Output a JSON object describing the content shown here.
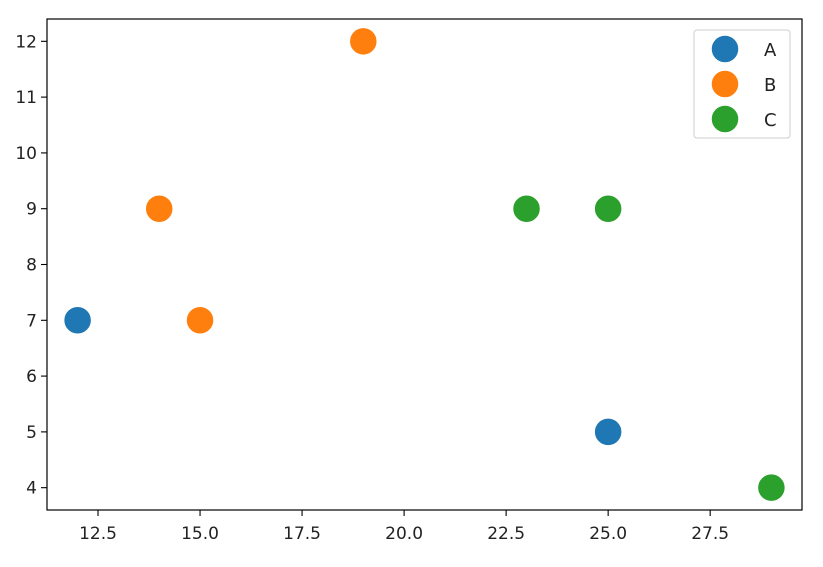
{
  "chart_data": {
    "type": "scatter",
    "title": "",
    "xlabel": "",
    "ylabel": "",
    "xlim": [
      11.25,
      29.75
    ],
    "ylim": [
      3.6,
      12.4
    ],
    "xticks": [
      12.5,
      15.0,
      17.5,
      20.0,
      22.5,
      25.0,
      27.5
    ],
    "xtick_labels": [
      "12.5",
      "15.0",
      "17.5",
      "20.0",
      "22.5",
      "25.0",
      "27.5"
    ],
    "yticks": [
      4,
      5,
      6,
      7,
      8,
      9,
      10,
      11,
      12
    ],
    "ytick_labels": [
      "4",
      "5",
      "6",
      "7",
      "8",
      "9",
      "10",
      "11",
      "12"
    ],
    "grid": false,
    "legend_position": "top-right",
    "series": [
      {
        "name": "A",
        "color": "#1f77b4",
        "points": [
          {
            "x": 12,
            "y": 7
          },
          {
            "x": 25,
            "y": 5
          }
        ]
      },
      {
        "name": "B",
        "color": "#ff7f0e",
        "points": [
          {
            "x": 19,
            "y": 12
          },
          {
            "x": 14,
            "y": 9
          },
          {
            "x": 15,
            "y": 7
          }
        ]
      },
      {
        "name": "C",
        "color": "#2ca02c",
        "points": [
          {
            "x": 23,
            "y": 9
          },
          {
            "x": 25,
            "y": 9
          },
          {
            "x": 29,
            "y": 4
          }
        ]
      }
    ]
  }
}
